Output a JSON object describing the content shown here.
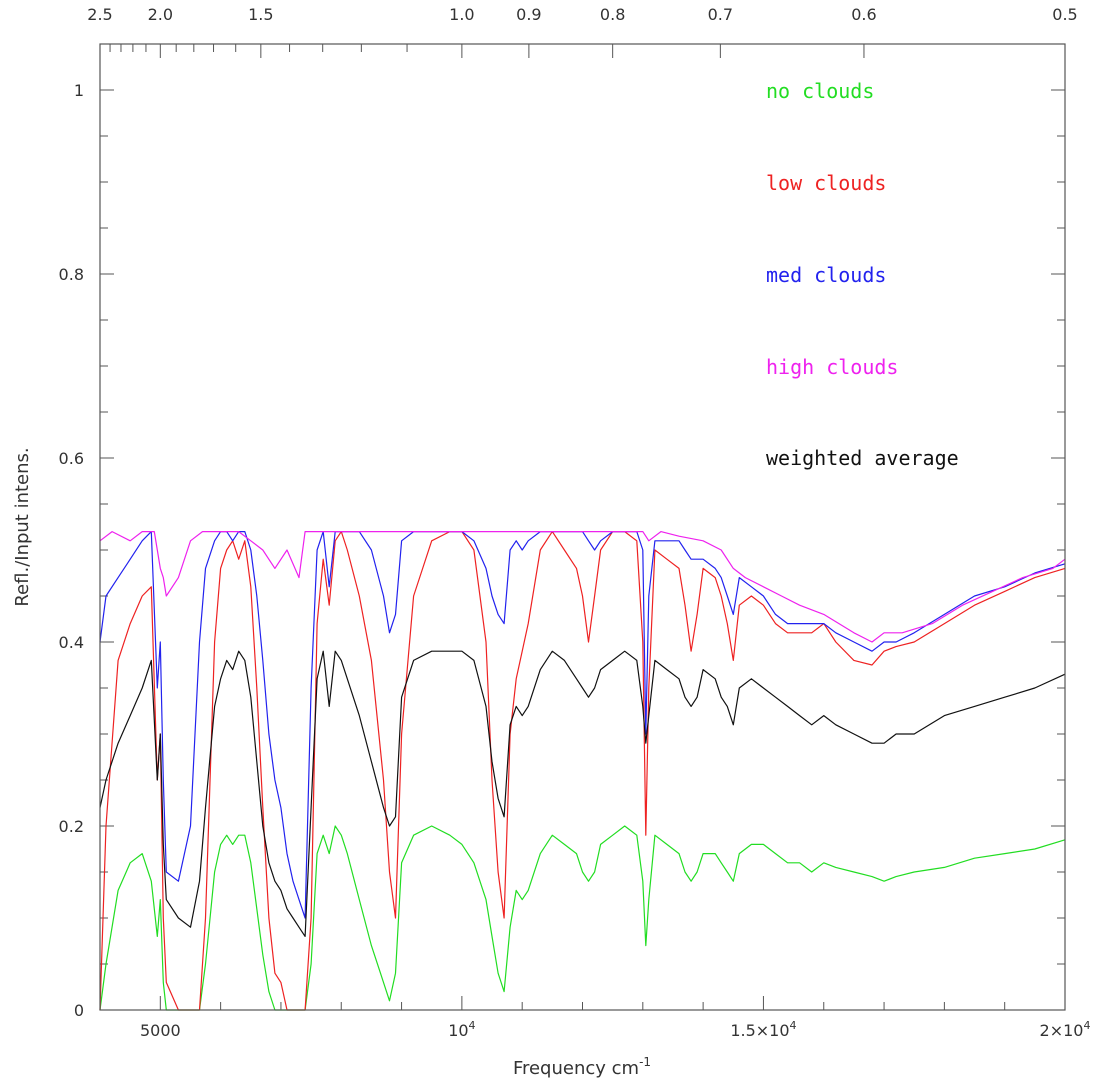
{
  "chart_data": {
    "type": "line",
    "xlabel": "Frequency cm",
    "xlabel_sup": "-1",
    "ylabel": "Refl./Input intens.",
    "xlim": [
      4000,
      20000
    ],
    "ylim": [
      0,
      1.05
    ],
    "x_ticks": [
      {
        "value": 5000,
        "label": "5000"
      },
      {
        "value": 10000,
        "label": "10",
        "sup": "4"
      },
      {
        "value": 15000,
        "label": "1.5×10",
        "sup": "4"
      },
      {
        "value": 20000,
        "label": "2×10",
        "sup": "4"
      }
    ],
    "y_ticks": [
      {
        "value": 0,
        "label": "0"
      },
      {
        "value": 0.2,
        "label": "0.2"
      },
      {
        "value": 0.4,
        "label": "0.4"
      },
      {
        "value": 0.6,
        "label": "0.6"
      },
      {
        "value": 0.8,
        "label": "0.8"
      },
      {
        "value": 1.0,
        "label": "1"
      }
    ],
    "top_axis_wavelength_ticks": [
      {
        "value": 2.5,
        "label": "2.5"
      },
      {
        "value": 2.0,
        "label": "2.0"
      },
      {
        "value": 1.5,
        "label": "1.5"
      },
      {
        "value": 1.0,
        "label": "1.0"
      },
      {
        "value": 0.9,
        "label": "0.9"
      },
      {
        "value": 0.8,
        "label": "0.8"
      },
      {
        "value": 0.7,
        "label": "0.7"
      },
      {
        "value": 0.6,
        "label": "0.6"
      },
      {
        "value": 0.5,
        "label": "0.5"
      }
    ],
    "legend_position": "top-right",
    "series": [
      {
        "name": "no clouds",
        "color": "#22dd22",
        "x": [
          4000,
          4100,
          4300,
          4500,
          4700,
          4850,
          4950,
          5000,
          5050,
          5100,
          5300,
          5500,
          5650,
          5750,
          5900,
          6000,
          6100,
          6200,
          6300,
          6400,
          6500,
          6600,
          6700,
          6800,
          6900,
          7000,
          7100,
          7200,
          7300,
          7400,
          7500,
          7600,
          7700,
          7800,
          7900,
          8000,
          8100,
          8300,
          8500,
          8700,
          8800,
          8900,
          9000,
          9200,
          9500,
          9800,
          10000,
          10200,
          10400,
          10500,
          10600,
          10700,
          10800,
          10900,
          11000,
          11100,
          11300,
          11500,
          11700,
          11900,
          12000,
          12100,
          12200,
          12300,
          12500,
          12700,
          12900,
          13000,
          13050,
          13100,
          13200,
          13400,
          13600,
          13700,
          13800,
          13900,
          14000,
          14200,
          14300,
          14400,
          14500,
          14600,
          14800,
          15000,
          15200,
          15400,
          15600,
          15800,
          16000,
          16200,
          16500,
          16800,
          17000,
          17200,
          17500,
          18000,
          18500,
          19000,
          19500,
          20000
        ],
        "y": [
          0.0,
          0.05,
          0.13,
          0.16,
          0.17,
          0.14,
          0.08,
          0.12,
          0.03,
          0.0,
          0.0,
          0.0,
          0.0,
          0.05,
          0.15,
          0.18,
          0.19,
          0.18,
          0.19,
          0.19,
          0.16,
          0.11,
          0.06,
          0.02,
          0.0,
          0.0,
          0.0,
          0.0,
          0.0,
          0.0,
          0.05,
          0.17,
          0.19,
          0.17,
          0.2,
          0.19,
          0.17,
          0.12,
          0.07,
          0.03,
          0.01,
          0.04,
          0.16,
          0.19,
          0.2,
          0.19,
          0.18,
          0.16,
          0.12,
          0.08,
          0.04,
          0.02,
          0.09,
          0.13,
          0.12,
          0.13,
          0.17,
          0.19,
          0.18,
          0.17,
          0.15,
          0.14,
          0.15,
          0.18,
          0.19,
          0.2,
          0.19,
          0.14,
          0.07,
          0.12,
          0.19,
          0.18,
          0.17,
          0.15,
          0.14,
          0.15,
          0.17,
          0.17,
          0.16,
          0.15,
          0.14,
          0.17,
          0.18,
          0.18,
          0.17,
          0.16,
          0.16,
          0.15,
          0.16,
          0.155,
          0.15,
          0.145,
          0.14,
          0.145,
          0.15,
          0.155,
          0.165,
          0.17,
          0.175,
          0.185
        ]
      },
      {
        "name": "low clouds",
        "color": "#ee2222",
        "x": [
          4000,
          4100,
          4300,
          4500,
          4700,
          4850,
          4950,
          5000,
          5050,
          5100,
          5300,
          5500,
          5650,
          5750,
          5900,
          6000,
          6100,
          6200,
          6300,
          6400,
          6500,
          6600,
          6700,
          6800,
          6900,
          7000,
          7100,
          7200,
          7300,
          7400,
          7500,
          7600,
          7700,
          7800,
          7900,
          8000,
          8100,
          8300,
          8500,
          8700,
          8800,
          8900,
          9000,
          9200,
          9500,
          9800,
          10000,
          10200,
          10400,
          10500,
          10600,
          10700,
          10800,
          10900,
          11000,
          11100,
          11300,
          11500,
          11700,
          11900,
          12000,
          12100,
          12200,
          12300,
          12500,
          12700,
          12900,
          13000,
          13050,
          13100,
          13200,
          13400,
          13600,
          13700,
          13800,
          13900,
          14000,
          14200,
          14300,
          14400,
          14500,
          14600,
          14800,
          15000,
          15200,
          15400,
          15600,
          15800,
          16000,
          16200,
          16500,
          16800,
          17000,
          17200,
          17500,
          18000,
          18500,
          19000,
          19500,
          20000
        ],
        "y": [
          0.0,
          0.2,
          0.38,
          0.42,
          0.45,
          0.46,
          0.25,
          0.3,
          0.1,
          0.03,
          0.0,
          0.0,
          0.0,
          0.1,
          0.4,
          0.48,
          0.5,
          0.51,
          0.49,
          0.51,
          0.46,
          0.35,
          0.22,
          0.1,
          0.04,
          0.03,
          0.0,
          0.0,
          0.0,
          0.0,
          0.1,
          0.42,
          0.49,
          0.44,
          0.51,
          0.52,
          0.5,
          0.45,
          0.38,
          0.25,
          0.15,
          0.1,
          0.3,
          0.45,
          0.51,
          0.52,
          0.52,
          0.5,
          0.4,
          0.25,
          0.15,
          0.1,
          0.3,
          0.36,
          0.39,
          0.42,
          0.5,
          0.52,
          0.5,
          0.48,
          0.45,
          0.4,
          0.45,
          0.5,
          0.52,
          0.52,
          0.51,
          0.4,
          0.19,
          0.35,
          0.5,
          0.49,
          0.48,
          0.44,
          0.39,
          0.43,
          0.48,
          0.47,
          0.45,
          0.42,
          0.38,
          0.44,
          0.45,
          0.44,
          0.42,
          0.41,
          0.41,
          0.41,
          0.42,
          0.4,
          0.38,
          0.375,
          0.39,
          0.395,
          0.4,
          0.42,
          0.44,
          0.455,
          0.47,
          0.48
        ]
      },
      {
        "name": "med clouds",
        "color": "#2222ee",
        "x": [
          4000,
          4100,
          4300,
          4500,
          4700,
          4850,
          4950,
          5000,
          5050,
          5100,
          5300,
          5500,
          5650,
          5750,
          5900,
          6000,
          6100,
          6200,
          6300,
          6400,
          6500,
          6600,
          6700,
          6800,
          6900,
          7000,
          7100,
          7200,
          7300,
          7400,
          7500,
          7600,
          7700,
          7800,
          7900,
          8000,
          8100,
          8300,
          8500,
          8700,
          8800,
          8900,
          9000,
          9200,
          9500,
          9800,
          10000,
          10200,
          10400,
          10500,
          10600,
          10700,
          10800,
          10900,
          11000,
          11100,
          11300,
          11500,
          11700,
          11900,
          12000,
          12100,
          12200,
          12300,
          12500,
          12700,
          12900,
          13000,
          13050,
          13100,
          13200,
          13400,
          13600,
          13700,
          13800,
          13900,
          14000,
          14200,
          14300,
          14400,
          14500,
          14600,
          14800,
          15000,
          15200,
          15400,
          15600,
          15800,
          16000,
          16200,
          16500,
          16800,
          17000,
          17200,
          17500,
          18000,
          18500,
          19000,
          19500,
          20000
        ],
        "y": [
          0.4,
          0.45,
          0.47,
          0.49,
          0.51,
          0.52,
          0.35,
          0.4,
          0.25,
          0.15,
          0.14,
          0.2,
          0.4,
          0.48,
          0.51,
          0.52,
          0.52,
          0.51,
          0.52,
          0.52,
          0.5,
          0.45,
          0.38,
          0.3,
          0.25,
          0.22,
          0.17,
          0.14,
          0.12,
          0.1,
          0.35,
          0.5,
          0.52,
          0.46,
          0.52,
          0.52,
          0.52,
          0.52,
          0.5,
          0.45,
          0.41,
          0.43,
          0.51,
          0.52,
          0.52,
          0.52,
          0.52,
          0.51,
          0.48,
          0.45,
          0.43,
          0.42,
          0.5,
          0.51,
          0.5,
          0.51,
          0.52,
          0.52,
          0.52,
          0.52,
          0.52,
          0.51,
          0.5,
          0.51,
          0.52,
          0.52,
          0.52,
          0.5,
          0.3,
          0.45,
          0.51,
          0.51,
          0.51,
          0.5,
          0.49,
          0.49,
          0.49,
          0.48,
          0.47,
          0.45,
          0.43,
          0.47,
          0.46,
          0.45,
          0.43,
          0.42,
          0.42,
          0.42,
          0.42,
          0.41,
          0.4,
          0.39,
          0.4,
          0.4,
          0.41,
          0.43,
          0.45,
          0.46,
          0.475,
          0.485
        ]
      },
      {
        "name": "high clouds",
        "color": "#ee22ee",
        "x": [
          4000,
          4200,
          4500,
          4700,
          4900,
          5000,
          5050,
          5100,
          5300,
          5500,
          5700,
          5900,
          6100,
          6300,
          6500,
          6700,
          6900,
          7100,
          7300,
          7400,
          7500,
          7700,
          7800,
          7900,
          8100,
          8500,
          9000,
          9500,
          10000,
          10500,
          11000,
          11500,
          12000,
          12500,
          13000,
          13100,
          13300,
          13600,
          14000,
          14300,
          14500,
          14700,
          15000,
          15300,
          15600,
          16000,
          16500,
          16800,
          17000,
          17300,
          17800,
          18300,
          18800,
          19300,
          19800,
          20000
        ],
        "y": [
          0.51,
          0.52,
          0.51,
          0.52,
          0.52,
          0.48,
          0.47,
          0.45,
          0.47,
          0.51,
          0.52,
          0.52,
          0.52,
          0.52,
          0.51,
          0.5,
          0.48,
          0.5,
          0.47,
          0.52,
          0.52,
          0.52,
          0.52,
          0.52,
          0.52,
          0.52,
          0.52,
          0.52,
          0.52,
          0.52,
          0.52,
          0.52,
          0.52,
          0.52,
          0.52,
          0.51,
          0.52,
          0.515,
          0.51,
          0.5,
          0.48,
          0.47,
          0.46,
          0.45,
          0.44,
          0.43,
          0.41,
          0.4,
          0.41,
          0.41,
          0.42,
          0.44,
          0.455,
          0.47,
          0.48,
          0.49
        ]
      },
      {
        "name": "weighted average",
        "color": "#111111",
        "x": [
          4000,
          4100,
          4300,
          4500,
          4700,
          4850,
          4950,
          5000,
          5050,
          5100,
          5300,
          5500,
          5650,
          5750,
          5900,
          6000,
          6100,
          6200,
          6300,
          6400,
          6500,
          6600,
          6700,
          6800,
          6900,
          7000,
          7100,
          7200,
          7300,
          7400,
          7500,
          7600,
          7700,
          7800,
          7900,
          8000,
          8100,
          8300,
          8500,
          8700,
          8800,
          8900,
          9000,
          9200,
          9500,
          9800,
          10000,
          10200,
          10400,
          10500,
          10600,
          10700,
          10800,
          10900,
          11000,
          11100,
          11300,
          11500,
          11700,
          11900,
          12000,
          12100,
          12200,
          12300,
          12500,
          12700,
          12900,
          13000,
          13050,
          13100,
          13200,
          13400,
          13600,
          13700,
          13800,
          13900,
          14000,
          14200,
          14300,
          14400,
          14500,
          14600,
          14800,
          15000,
          15200,
          15400,
          15600,
          15800,
          16000,
          16200,
          16500,
          16800,
          17000,
          17200,
          17500,
          18000,
          18500,
          19000,
          19500,
          20000
        ],
        "y": [
          0.22,
          0.25,
          0.29,
          0.32,
          0.35,
          0.38,
          0.25,
          0.3,
          0.18,
          0.12,
          0.1,
          0.09,
          0.14,
          0.22,
          0.33,
          0.36,
          0.38,
          0.37,
          0.39,
          0.38,
          0.34,
          0.27,
          0.2,
          0.16,
          0.14,
          0.13,
          0.11,
          0.1,
          0.09,
          0.08,
          0.22,
          0.36,
          0.39,
          0.33,
          0.39,
          0.38,
          0.36,
          0.32,
          0.27,
          0.22,
          0.2,
          0.21,
          0.34,
          0.38,
          0.39,
          0.39,
          0.39,
          0.38,
          0.33,
          0.27,
          0.23,
          0.21,
          0.31,
          0.33,
          0.32,
          0.33,
          0.37,
          0.39,
          0.38,
          0.36,
          0.35,
          0.34,
          0.35,
          0.37,
          0.38,
          0.39,
          0.38,
          0.33,
          0.29,
          0.32,
          0.38,
          0.37,
          0.36,
          0.34,
          0.33,
          0.34,
          0.37,
          0.36,
          0.34,
          0.33,
          0.31,
          0.35,
          0.36,
          0.35,
          0.34,
          0.33,
          0.32,
          0.31,
          0.32,
          0.31,
          0.3,
          0.29,
          0.29,
          0.3,
          0.3,
          0.32,
          0.33,
          0.34,
          0.35,
          0.365
        ]
      }
    ]
  }
}
